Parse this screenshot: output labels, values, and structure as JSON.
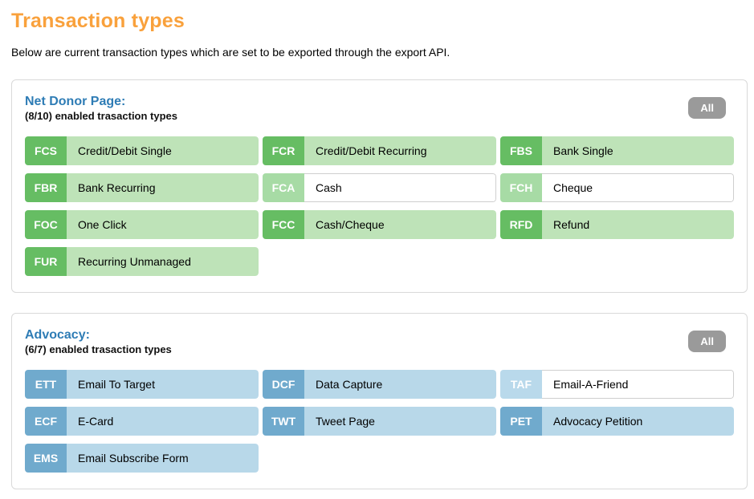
{
  "page": {
    "title": "Transaction types",
    "subtitle": "Below are current transaction types which are set to be exported through the export API."
  },
  "colors": {
    "accent_orange": "#f9a13c",
    "heading_blue": "#2e7cb5",
    "green_code": "#66bd63",
    "green_label": "#bee3b8",
    "green_code_disabled": "#a7dba5",
    "blue_code": "#70aacd",
    "blue_label": "#b8d8e9",
    "blue_code_disabled": "#b9d9eb",
    "all_button_gray": "#9a9a9a",
    "panel_border": "#d9d9d9"
  },
  "sections": [
    {
      "id": "net-donor-page",
      "title": "Net Donor Page:",
      "count_text": "(8/10) enabled trasaction types",
      "all_button_label": "All",
      "theme": "green",
      "types": [
        {
          "code": "FCS",
          "label": "Credit/Debit Single",
          "enabled": true
        },
        {
          "code": "FCR",
          "label": "Credit/Debit Recurring",
          "enabled": true
        },
        {
          "code": "FBS",
          "label": "Bank Single",
          "enabled": true
        },
        {
          "code": "FBR",
          "label": "Bank Recurring",
          "enabled": true
        },
        {
          "code": "FCA",
          "label": "Cash",
          "enabled": false
        },
        {
          "code": "FCH",
          "label": "Cheque",
          "enabled": false
        },
        {
          "code": "FOC",
          "label": "One Click",
          "enabled": true
        },
        {
          "code": "FCC",
          "label": "Cash/Cheque",
          "enabled": true
        },
        {
          "code": "RFD",
          "label": "Refund",
          "enabled": true
        },
        {
          "code": "FUR",
          "label": "Recurring Unmanaged",
          "enabled": true
        }
      ]
    },
    {
      "id": "advocacy",
      "title": "Advocacy:",
      "count_text": "(6/7) enabled trasaction types",
      "all_button_label": "All",
      "theme": "blue",
      "types": [
        {
          "code": "ETT",
          "label": "Email To Target",
          "enabled": true
        },
        {
          "code": "DCF",
          "label": "Data Capture",
          "enabled": true
        },
        {
          "code": "TAF",
          "label": "Email-A-Friend",
          "enabled": false
        },
        {
          "code": "ECF",
          "label": "E-Card",
          "enabled": true
        },
        {
          "code": "TWT",
          "label": "Tweet Page",
          "enabled": true
        },
        {
          "code": "PET",
          "label": "Advocacy Petition",
          "enabled": true
        },
        {
          "code": "EMS",
          "label": "Email Subscribe Form",
          "enabled": true
        }
      ]
    }
  ]
}
